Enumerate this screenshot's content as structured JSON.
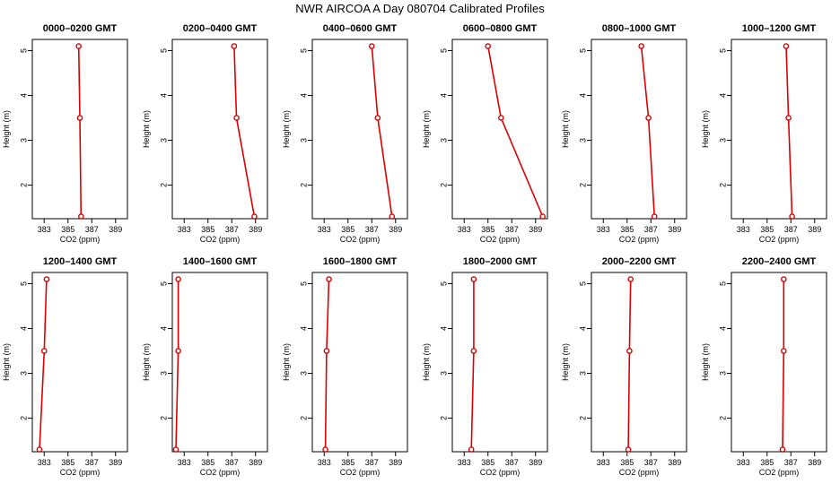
{
  "title": "NWR AIRCOA A  Day 080704  Calibrated Profiles",
  "chart_data": {
    "type": "line",
    "orientation": "profile",
    "xlabel": "CO2 (ppm)",
    "ylabel": "Height (m)",
    "xlim": [
      382,
      390
    ],
    "ylim": [
      1.25,
      5.25
    ],
    "xticks": [
      383,
      385,
      387,
      389
    ],
    "yticks": [
      2,
      3,
      4,
      5
    ],
    "series_color": "#dd0000",
    "heights": [
      5.1,
      3.5,
      1.3
    ],
    "panels": [
      {
        "title": "0000–0200 GMT",
        "co2": [
          385.9,
          386.0,
          386.1
        ]
      },
      {
        "title": "0200–0400 GMT",
        "co2": [
          387.2,
          387.4,
          388.9
        ]
      },
      {
        "title": "0400–0600 GMT",
        "co2": [
          387.0,
          387.5,
          388.7
        ]
      },
      {
        "title": "0600–0800 GMT",
        "co2": [
          385.0,
          386.1,
          389.6
        ]
      },
      {
        "title": "0800–1000 GMT",
        "co2": [
          386.2,
          386.8,
          387.3
        ]
      },
      {
        "title": "1000–1200 GMT",
        "co2": [
          386.6,
          386.8,
          387.1
        ]
      },
      {
        "title": "1200–1400 GMT",
        "co2": [
          383.2,
          383.0,
          382.6
        ]
      },
      {
        "title": "1400–1600 GMT",
        "co2": [
          382.5,
          382.5,
          382.3
        ]
      },
      {
        "title": "1600–1800 GMT",
        "co2": [
          383.4,
          383.2,
          383.1
        ]
      },
      {
        "title": "1800–2000 GMT",
        "co2": [
          383.8,
          383.8,
          383.6
        ]
      },
      {
        "title": "2000–2200 GMT",
        "co2": [
          385.3,
          385.2,
          385.1
        ]
      },
      {
        "title": "2200–2400 GMT",
        "co2": [
          386.4,
          386.4,
          386.3
        ]
      }
    ]
  }
}
